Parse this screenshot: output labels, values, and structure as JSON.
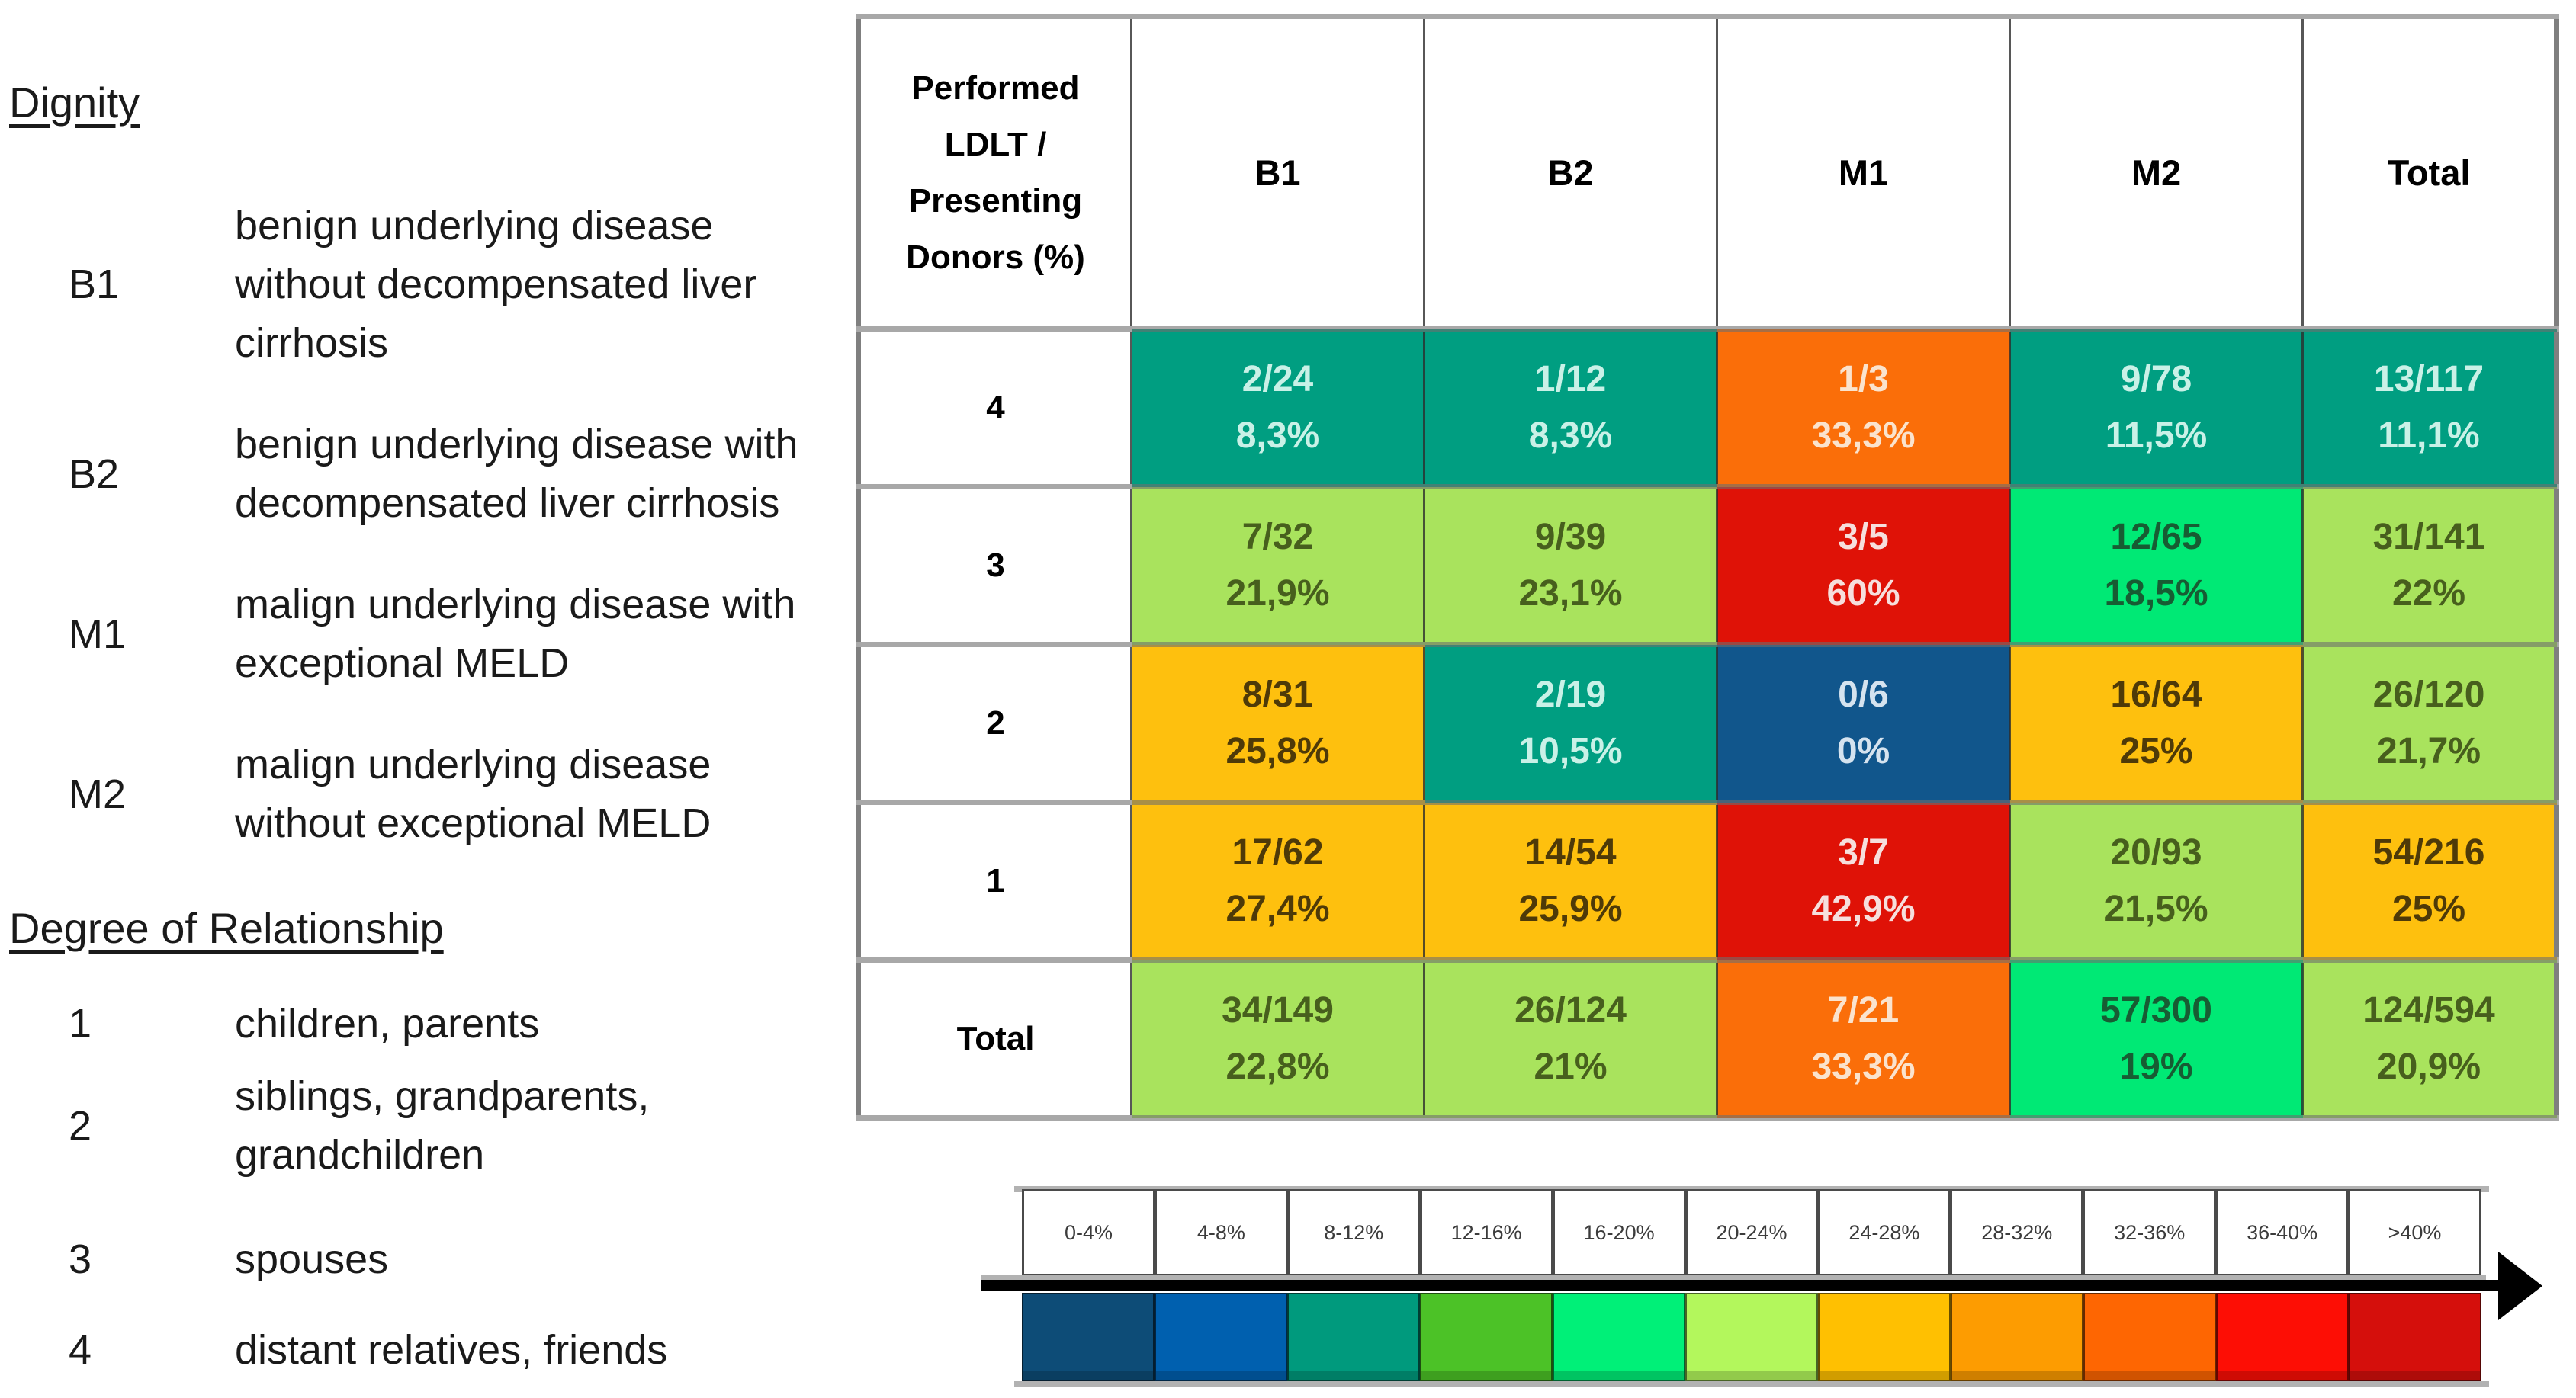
{
  "legend": {
    "dignity": {
      "heading": "Dignity",
      "items": [
        {
          "code": "B1",
          "lines": [
            "benign underlying disease",
            "without decompensated liver",
            "cirrhosis"
          ]
        },
        {
          "code": "B2",
          "lines": [
            "benign underlying disease with",
            "decompensated liver cirrhosis"
          ]
        },
        {
          "code": "M1",
          "lines": [
            "malign underlying disease with",
            "exceptional MELD"
          ]
        },
        {
          "code": "M2",
          "lines": [
            "malign underlying disease",
            "without exceptional MELD"
          ]
        }
      ]
    },
    "relationship": {
      "heading": "Degree of Relationship",
      "items": [
        {
          "code": "1",
          "lines": [
            "children, parents"
          ]
        },
        {
          "code": "2",
          "lines": [
            "siblings, grandparents,",
            "grandchildren"
          ]
        },
        {
          "code": "3",
          "lines": [
            "spouses"
          ]
        },
        {
          "code": "4",
          "lines": [
            "distant relatives, friends"
          ]
        }
      ]
    }
  },
  "table": {
    "corner_header": "Performed LDLT / Presenting Donors (%)",
    "columns": [
      "B1",
      "B2",
      "M1",
      "M2",
      "Total"
    ],
    "tones": {
      "darkblue": {
        "bg": "#11568C",
        "fg": "#D5E3EF"
      },
      "teal": {
        "bg": "#009E81",
        "fg": "#C9F1E7"
      },
      "springgreen": {
        "bg": "#00E975",
        "fg": "#175C33"
      },
      "lightgreen": {
        "bg": "#A9E35D",
        "fg": "#475F1D"
      },
      "amber": {
        "bg": "#FEC00E",
        "fg": "#4E3A08"
      },
      "orange": {
        "bg": "#FA6E09",
        "fg": "#FAE3CD"
      },
      "red": {
        "bg": "#DF1207",
        "fg": "#F6DFDD"
      }
    },
    "rows": [
      {
        "label": "4",
        "cells": [
          {
            "fraction": "2/24",
            "percent": "8,3%",
            "tone": "teal"
          },
          {
            "fraction": "1/12",
            "percent": "8,3%",
            "tone": "teal"
          },
          {
            "fraction": "1/3",
            "percent": "33,3%",
            "tone": "orange"
          },
          {
            "fraction": "9/78",
            "percent": "11,5%",
            "tone": "teal"
          },
          {
            "fraction": "13/117",
            "percent": "11,1%",
            "tone": "teal"
          }
        ]
      },
      {
        "label": "3",
        "cells": [
          {
            "fraction": "7/32",
            "percent": "21,9%",
            "tone": "lightgreen"
          },
          {
            "fraction": "9/39",
            "percent": "23,1%",
            "tone": "lightgreen"
          },
          {
            "fraction": "3/5",
            "percent": "60%",
            "tone": "red"
          },
          {
            "fraction": "12/65",
            "percent": "18,5%",
            "tone": "springgreen"
          },
          {
            "fraction": "31/141",
            "percent": "22%",
            "tone": "lightgreen"
          }
        ]
      },
      {
        "label": "2",
        "cells": [
          {
            "fraction": "8/31",
            "percent": "25,8%",
            "tone": "amber"
          },
          {
            "fraction": "2/19",
            "percent": "10,5%",
            "tone": "teal"
          },
          {
            "fraction": "0/6",
            "percent": "0%",
            "tone": "darkblue"
          },
          {
            "fraction": "16/64",
            "percent": "25%",
            "tone": "amber"
          },
          {
            "fraction": "26/120",
            "percent": "21,7%",
            "tone": "lightgreen"
          }
        ]
      },
      {
        "label": "1",
        "cells": [
          {
            "fraction": "17/62",
            "percent": "27,4%",
            "tone": "amber"
          },
          {
            "fraction": "14/54",
            "percent": "25,9%",
            "tone": "amber"
          },
          {
            "fraction": "3/7",
            "percent": "42,9%",
            "tone": "red"
          },
          {
            "fraction": "20/93",
            "percent": "21,5%",
            "tone": "lightgreen"
          },
          {
            "fraction": "54/216",
            "percent": "25%",
            "tone": "amber"
          }
        ]
      },
      {
        "label": "Total",
        "cells": [
          {
            "fraction": "34/149",
            "percent": "22,8%",
            "tone": "lightgreen"
          },
          {
            "fraction": "26/124",
            "percent": "21%",
            "tone": "lightgreen"
          },
          {
            "fraction": "7/21",
            "percent": "33,3%",
            "tone": "orange"
          },
          {
            "fraction": "57/300",
            "percent": "19%",
            "tone": "springgreen"
          },
          {
            "fraction": "124/594",
            "percent": "20,9%",
            "tone": "lightgreen"
          }
        ]
      }
    ]
  },
  "scale": {
    "bins": [
      {
        "label": "0-4%",
        "color": "#0D4C77"
      },
      {
        "label": "4-8%",
        "color": "#0060AF"
      },
      {
        "label": "8-12%",
        "color": "#009A7D"
      },
      {
        "label": "12-16%",
        "color": "#4CC227"
      },
      {
        "label": "16-20%",
        "color": "#00F078"
      },
      {
        "label": "20-24%",
        "color": "#B3F75C"
      },
      {
        "label": "24-28%",
        "color": "#FFC001"
      },
      {
        "label": "28-32%",
        "color": "#FD9C01"
      },
      {
        "label": "32-36%",
        "color": "#FE6602"
      },
      {
        "label": "36-40%",
        "color": "#FD0E05"
      },
      {
        "label": ">40%",
        "color": "#D50F0C"
      }
    ]
  },
  "chart_data": {
    "type": "heatmap",
    "title": "Performed LDLT / Presenting Donors (%)",
    "columns": [
      "B1",
      "B2",
      "M1",
      "M2",
      "Total"
    ],
    "rows": [
      "4",
      "3",
      "2",
      "1",
      "Total"
    ],
    "values_percent": [
      [
        8.3,
        8.3,
        33.3,
        11.5,
        11.1
      ],
      [
        21.9,
        23.1,
        60,
        18.5,
        22
      ],
      [
        25.8,
        10.5,
        0,
        25,
        21.7
      ],
      [
        27.4,
        25.9,
        42.9,
        21.5,
        25
      ],
      [
        22.8,
        21,
        33.3,
        19,
        20.9
      ]
    ],
    "values_fraction": [
      [
        "2/24",
        "1/12",
        "1/3",
        "9/78",
        "13/117"
      ],
      [
        "7/32",
        "9/39",
        "3/5",
        "12/65",
        "31/141"
      ],
      [
        "8/31",
        "2/19",
        "0/6",
        "16/64",
        "26/120"
      ],
      [
        "17/62",
        "14/54",
        "3/7",
        "20/93",
        "54/216"
      ],
      [
        "34/149",
        "26/124",
        "7/21",
        "57/300",
        "124/594"
      ]
    ],
    "colorscale_bins": [
      "0-4%",
      "4-8%",
      "8-12%",
      "12-16%",
      "16-20%",
      "20-24%",
      "24-28%",
      "28-32%",
      "32-36%",
      "36-40%",
      ">40%"
    ],
    "colorscale_colors": [
      "#0D4C77",
      "#0060AF",
      "#009A7D",
      "#4CC227",
      "#00F078",
      "#B3F75C",
      "#FFC001",
      "#FD9C01",
      "#FE6602",
      "#FD0E05",
      "#D50F0C"
    ],
    "legend_position": "bottom",
    "grid": true
  }
}
